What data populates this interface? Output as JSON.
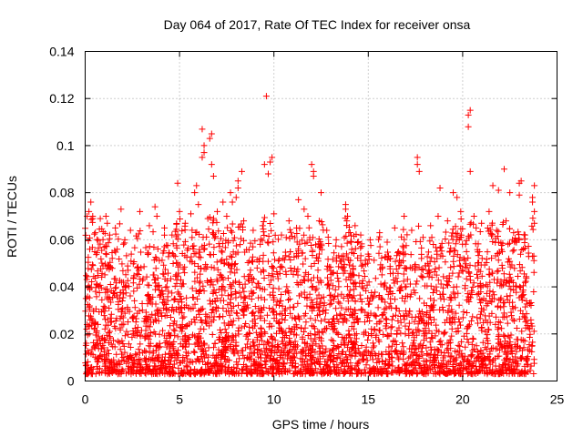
{
  "chart_data": {
    "type": "scatter",
    "title": "Day 064 of 2017, Rate Of TEC Index for receiver onsa",
    "xlabel": "GPS time / hours",
    "ylabel": "ROTI / TECUs",
    "xlim": [
      0,
      25
    ],
    "ylim": [
      0,
      0.14
    ],
    "xticks": [
      0,
      5,
      10,
      15,
      20,
      25
    ],
    "xtick_labels": [
      "0",
      "5",
      "10",
      "15",
      "20",
      "25"
    ],
    "yticks": [
      0,
      0.02,
      0.04,
      0.06,
      0.08,
      0.1,
      0.12,
      0.14
    ],
    "ytick_labels": [
      "0",
      "0.02",
      "0.04",
      "0.06",
      "0.08",
      "0.1",
      "0.12",
      "0.14"
    ],
    "grid": true,
    "marker": "+",
    "color": "#ff0000",
    "data_x_range": [
      0,
      23.8
    ],
    "series": [
      {
        "points": [
          [
            9.6,
            0.121
          ],
          [
            20.4,
            0.115
          ],
          [
            20.3,
            0.113
          ],
          [
            20.3,
            0.108
          ],
          [
            6.2,
            0.107
          ],
          [
            6.7,
            0.105
          ],
          [
            6.6,
            0.103
          ],
          [
            6.3,
            0.1
          ],
          [
            6.3,
            0.097
          ],
          [
            6.7,
            0.092
          ],
          [
            6.8,
            0.087
          ],
          [
            6.2,
            0.095
          ],
          [
            9.9,
            0.095
          ],
          [
            9.8,
            0.093
          ],
          [
            9.5,
            0.092
          ],
          [
            9.7,
            0.088
          ],
          [
            17.6,
            0.095
          ],
          [
            17.6,
            0.092
          ],
          [
            17.7,
            0.089
          ],
          [
            12.0,
            0.092
          ],
          [
            12.1,
            0.089
          ],
          [
            12.1,
            0.087
          ],
          [
            8.3,
            0.089
          ],
          [
            8.1,
            0.085
          ],
          [
            8.1,
            0.082
          ],
          [
            8.0,
            0.078
          ],
          [
            22.2,
            0.09
          ],
          [
            20.4,
            0.089
          ],
          [
            4.9,
            0.084
          ],
          [
            5.9,
            0.083
          ],
          [
            5.8,
            0.08
          ],
          [
            23.8,
            0.083
          ],
          [
            23.7,
            0.078
          ],
          [
            23.7,
            0.076
          ],
          [
            23.8,
            0.072
          ],
          [
            23.8,
            0.067
          ],
          [
            23.1,
            0.085
          ],
          [
            23.0,
            0.084
          ],
          [
            23.0,
            0.079
          ],
          [
            21.6,
            0.083
          ],
          [
            21.9,
            0.081
          ],
          [
            22.5,
            0.08
          ],
          [
            18.8,
            0.082
          ],
          [
            19.5,
            0.08
          ],
          [
            19.7,
            0.078
          ],
          [
            12.5,
            0.08
          ],
          [
            11.3,
            0.077
          ],
          [
            11.6,
            0.073
          ],
          [
            13.8,
            0.075
          ],
          [
            13.8,
            0.073
          ],
          [
            13.9,
            0.07
          ],
          [
            7.7,
            0.08
          ],
          [
            7.8,
            0.076
          ],
          [
            7.3,
            0.076
          ],
          [
            0.3,
            0.076
          ],
          [
            0.2,
            0.072
          ],
          [
            0.1,
            0.07
          ],
          [
            0.4,
            0.07
          ],
          [
            0.8,
            0.069
          ],
          [
            1.1,
            0.07
          ],
          [
            1.3,
            0.062
          ],
          [
            1.9,
            0.073
          ],
          [
            1.6,
            0.065
          ],
          [
            2.1,
            0.06
          ],
          [
            2.4,
            0.064
          ],
          [
            2.9,
            0.072
          ],
          [
            3.4,
            0.066
          ],
          [
            3.7,
            0.074
          ],
          [
            3.8,
            0.07
          ],
          [
            4.2,
            0.065
          ],
          [
            4.6,
            0.062
          ],
          [
            5.0,
            0.072
          ],
          [
            5.3,
            0.067
          ],
          [
            5.6,
            0.071
          ],
          [
            6.0,
            0.075
          ],
          [
            6.5,
            0.069
          ],
          [
            7.0,
            0.072
          ],
          [
            7.5,
            0.07
          ],
          [
            8.4,
            0.068
          ],
          [
            8.9,
            0.064
          ],
          [
            9.4,
            0.066
          ],
          [
            10.0,
            0.071
          ],
          [
            10.4,
            0.062
          ],
          [
            10.8,
            0.068
          ],
          [
            11.2,
            0.065
          ],
          [
            11.8,
            0.07
          ],
          [
            12.4,
            0.068
          ],
          [
            12.8,
            0.064
          ],
          [
            13.3,
            0.06
          ],
          [
            14.3,
            0.066
          ],
          [
            14.6,
            0.062
          ],
          [
            15.1,
            0.06
          ],
          [
            15.6,
            0.063
          ],
          [
            16.0,
            0.059
          ],
          [
            16.4,
            0.065
          ],
          [
            16.9,
            0.07
          ],
          [
            17.3,
            0.064
          ],
          [
            17.9,
            0.061
          ],
          [
            18.3,
            0.066
          ],
          [
            18.7,
            0.07
          ],
          [
            19.2,
            0.068
          ],
          [
            19.9,
            0.072
          ],
          [
            20.6,
            0.07
          ],
          [
            21.0,
            0.067
          ],
          [
            21.4,
            0.072
          ],
          [
            21.8,
            0.064
          ],
          [
            22.3,
            0.068
          ],
          [
            22.7,
            0.063
          ],
          [
            23.3,
            0.062
          ]
        ]
      }
    ]
  }
}
